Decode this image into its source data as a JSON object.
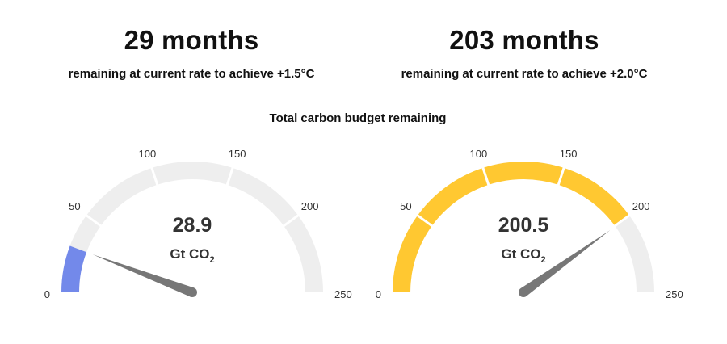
{
  "panels": [
    {
      "months": "29 months",
      "description": "remaining at current rate to achieve +1.5°C"
    },
    {
      "months": "203 months",
      "description": "remaining at current rate to achieve +2.0°C"
    }
  ],
  "budget_title": "Total carbon budget remaining",
  "colors": {
    "track": "#eeeeee",
    "needle": "#777777",
    "divider": "#ffffff"
  },
  "chart_data": [
    {
      "type": "gauge",
      "min": 0,
      "max": 250,
      "value": 28.9,
      "value_label": "28.9",
      "unit": {
        "main": "Gt CO",
        "sub": "2"
      },
      "tick_labels": [
        "0",
        "50",
        "100",
        "150",
        "200",
        "250"
      ],
      "fill_color": "#7389ea"
    },
    {
      "type": "gauge",
      "min": 0,
      "max": 250,
      "value": 200.5,
      "value_label": "200.5",
      "unit": {
        "main": "Gt CO",
        "sub": "2"
      },
      "tick_labels": [
        "0",
        "50",
        "100",
        "150",
        "200",
        "250"
      ],
      "fill_color": "#ffc831"
    }
  ]
}
